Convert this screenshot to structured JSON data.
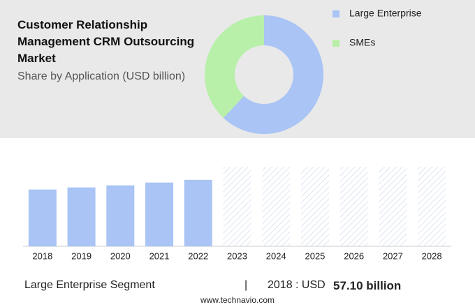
{
  "header": {
    "title": "Customer Relationship Management CRM Outsourcing Market",
    "subtitle": "Share by Application (USD billion)"
  },
  "chart_data": [
    {
      "type": "donut",
      "categories": [
        "Large Enterprise",
        "SMEs"
      ],
      "values": [
        62,
        38
      ],
      "colors": [
        "#a9c4f5",
        "#b8f0aa"
      ],
      "legend": "right"
    },
    {
      "type": "bar",
      "categories": [
        "2018",
        "2019",
        "2020",
        "2021",
        "2022",
        "2023",
        "2024",
        "2025",
        "2026",
        "2027",
        "2028"
      ],
      "values": [
        57.1,
        59.2,
        61.3,
        64.1,
        66.8,
        null,
        null,
        null,
        null,
        null,
        null
      ],
      "color": "#a9c4f5",
      "ylim": [
        0,
        80
      ]
    }
  ],
  "footer": {
    "segment": "Large Enterprise Segment",
    "separator": "|",
    "label": "2018 : USD",
    "value": "57.10 billion",
    "source": "www.technavio.com"
  }
}
